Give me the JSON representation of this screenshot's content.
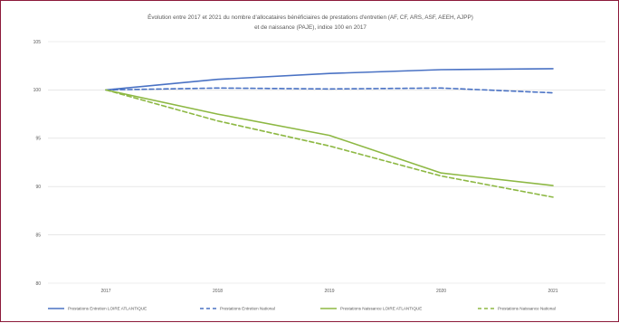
{
  "chart_data": {
    "type": "line",
    "title_lines": [
      "Évolution entre 2017 et 2021 du nombre d'allocataires bénéficiaires de prestations d'entretien (AF, CF, ARS, ASF, AEEH, AJPP)",
      "et de naissance (PAJE), indice 100 en 2017"
    ],
    "x": [
      "2017",
      "2018",
      "2019",
      "2020",
      "2021"
    ],
    "y_ticks": [
      "105",
      "100",
      "95",
      "90",
      "85",
      "80"
    ],
    "ylim": [
      80,
      105
    ],
    "grid": true,
    "legend_position": "bottom",
    "series": [
      {
        "name": "Prestations Entretien LOIRE ATLANTIQUE",
        "values": [
          100,
          101.1,
          101.7,
          102.1,
          102.2
        ],
        "color": "#4a72c4",
        "dashed": false
      },
      {
        "name": "Prestations Entretien National",
        "values": [
          100,
          100.2,
          100.1,
          100.2,
          99.7
        ],
        "color": "#4a72c4",
        "dashed": true
      },
      {
        "name": "Prestations Naissance LOIRE ATLANTIQUE",
        "values": [
          100,
          97.5,
          95.3,
          91.4,
          90.1
        ],
        "color": "#8db843",
        "dashed": false
      },
      {
        "name": "Prestations Naissance National",
        "values": [
          100,
          96.8,
          94.2,
          91.1,
          88.9
        ],
        "color": "#8db843",
        "dashed": true
      }
    ]
  }
}
